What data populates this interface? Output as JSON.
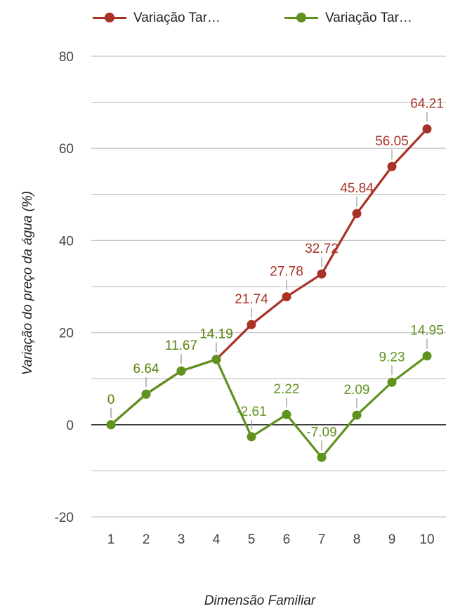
{
  "chart_data": {
    "type": "line",
    "xlabel": "Dimensão Familiar",
    "ylabel": "Variação do preço da água (%)",
    "x": [
      1,
      2,
      3,
      4,
      5,
      6,
      7,
      8,
      9,
      10
    ],
    "ylim": [
      -20,
      80
    ],
    "yticks": [
      -20,
      0,
      20,
      40,
      60,
      80
    ],
    "grid": true,
    "legend_position": "top",
    "series": [
      {
        "name": "Variação Tar…",
        "color": "#a93226",
        "values": [
          0,
          6.64,
          11.67,
          14.19,
          21.74,
          27.78,
          32.72,
          45.84,
          56.05,
          64.21
        ],
        "labels": [
          "0",
          "6.64",
          "11.67",
          "14.19",
          "21.74",
          "27.78",
          "32.72",
          "45.84",
          "56.05",
          "64.21"
        ]
      },
      {
        "name": "Variação Tar…",
        "color": "#5f921e",
        "values": [
          0,
          6.64,
          11.67,
          14.19,
          -2.61,
          2.22,
          -7.09,
          2.09,
          9.23,
          14.95
        ],
        "labels": [
          "0",
          "6.64",
          "11.67",
          "14.19",
          "-2.61",
          "2.22",
          "-7.09",
          "2.09",
          "9.23",
          "14.95"
        ]
      }
    ]
  }
}
